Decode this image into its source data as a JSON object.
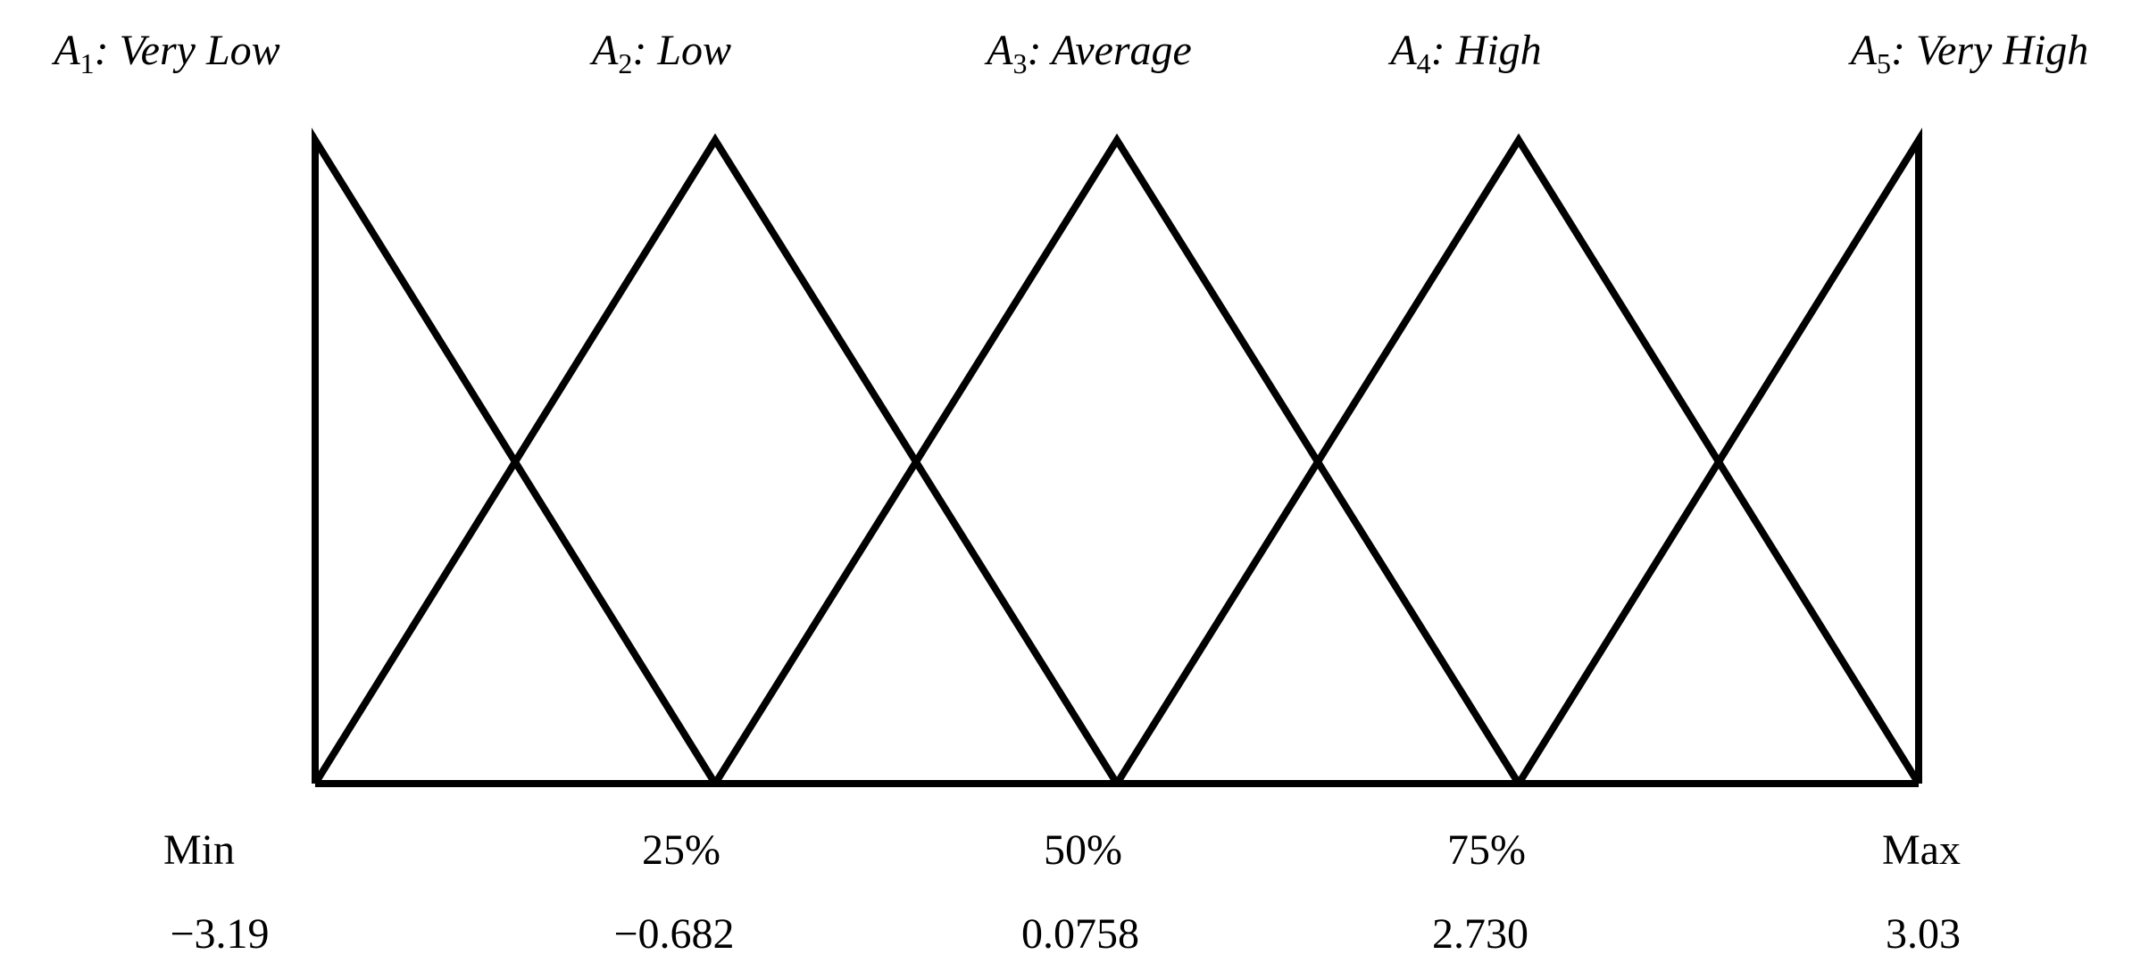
{
  "sets": [
    {
      "symbol": "A",
      "index": "1",
      "text": ": Very Low"
    },
    {
      "symbol": "A",
      "index": "2",
      "text": ": Low"
    },
    {
      "symbol": "A",
      "index": "3",
      "text": ": Average"
    },
    {
      "symbol": "A",
      "index": "4",
      "text": ": High"
    },
    {
      "symbol": "A",
      "index": "5",
      "text": ": Very High"
    }
  ],
  "breakpoints": [
    {
      "label": "Min",
      "value": "−3.19"
    },
    {
      "label": "25%",
      "value": "−0.682"
    },
    {
      "label": "50%",
      "value": "0.0758"
    },
    {
      "label": "75%",
      "value": "2.730"
    },
    {
      "label": "Max",
      "value": "3.03"
    }
  ]
}
